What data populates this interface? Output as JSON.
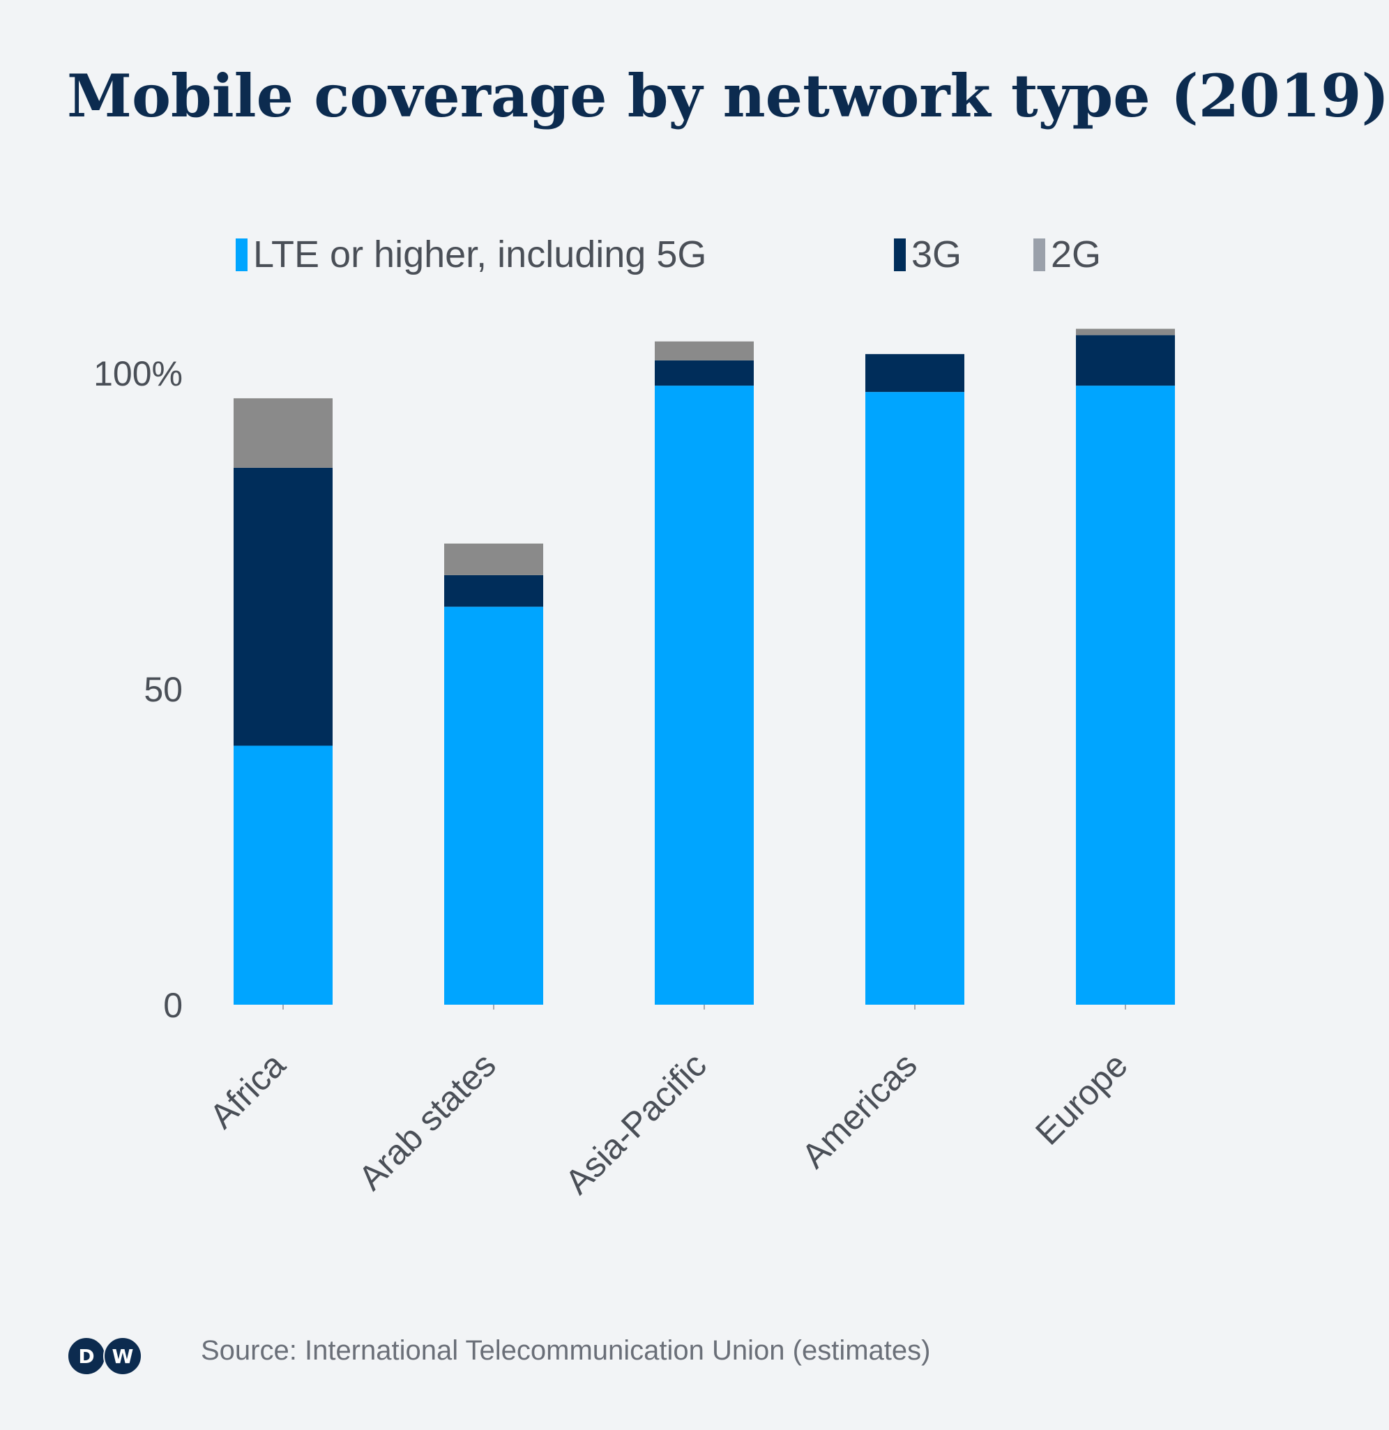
{
  "chart_data": {
    "type": "bar",
    "stacked": true,
    "title": "Mobile coverage by network type  (2019)",
    "categories": [
      "Africa",
      "Arab states",
      "Asia-Pacific",
      "Americas",
      "Europe"
    ],
    "series": [
      {
        "name": "LTE or higher, including 5G",
        "color": "#00a5ff",
        "values": [
          41,
          63,
          98,
          97,
          98
        ]
      },
      {
        "name": "3G",
        "color": "#002d5a",
        "values": [
          44,
          5,
          4,
          6,
          8
        ]
      },
      {
        "name": "2G",
        "color": "#8a8a8a",
        "values": [
          11,
          5,
          3,
          0,
          1
        ]
      }
    ],
    "legend_swatch_colors": [
      "#00a5ff",
      "#002d5a",
      "#9aa0aa"
    ],
    "yticks": [
      {
        "value": 0,
        "label": "0"
      },
      {
        "value": 50,
        "label": "50"
      },
      {
        "value": 100,
        "label": "100%"
      }
    ],
    "ylim": [
      0,
      106
    ],
    "legend_position": "top",
    "grid": false,
    "xlabel": "",
    "ylabel": ""
  },
  "source": "Source: International Telecommunication Union (estimates)",
  "logo": {
    "letters": [
      "D",
      "W"
    ]
  }
}
